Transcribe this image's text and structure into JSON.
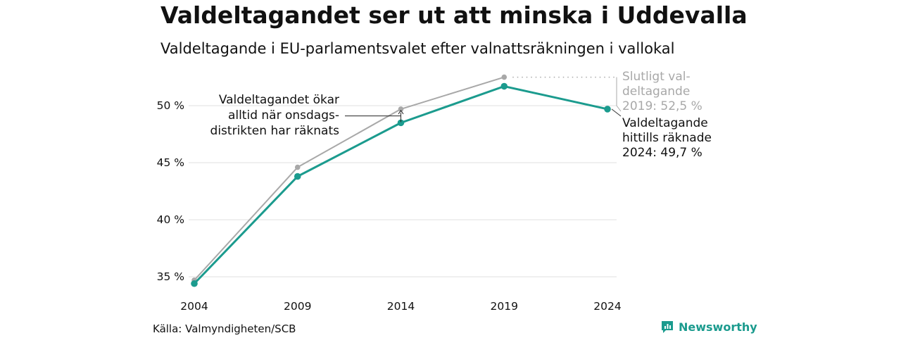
{
  "header": {
    "title": "Valdeltagandet ser ut att minska i Uddevalla",
    "subtitle": "Valdeltagande i EU-parlamentsvalet efter valnattsräkningen i vallokal"
  },
  "footer": {
    "source": "Källa: Valmyndigheten/SCB",
    "brand": "Newsworthy",
    "brand_icon": "newsworthy-logo-icon"
  },
  "colors": {
    "final_series": "#a8a8a8",
    "counted_series": "#1b9b8e",
    "grid": "#e3e3e3",
    "text": "#111111",
    "muted_text": "#a8a8a8"
  },
  "chart_data": {
    "type": "line",
    "x": [
      "2004",
      "2009",
      "2014",
      "2019",
      "2024"
    ],
    "ylim": [
      34.2,
      53.4
    ],
    "yticks": [
      {
        "value": 35,
        "label": "35 %"
      },
      {
        "value": 40,
        "label": "40 %"
      },
      {
        "value": 45,
        "label": "45 %"
      },
      {
        "value": 50,
        "label": "50 %"
      }
    ],
    "grid": true,
    "series": [
      {
        "key": "final",
        "values": [
          34.7,
          44.6,
          49.7,
          52.5,
          null
        ]
      },
      {
        "key": "counted",
        "values": [
          34.4,
          43.8,
          48.5,
          51.7,
          49.7
        ]
      }
    ],
    "annotations": {
      "increase": [
        "Valdeltagandet ökar",
        "alltid när onsdags-",
        "distrikten har räknats"
      ],
      "final": [
        "Slutligt val-",
        "deltagande",
        "2019: 52,5 %"
      ],
      "counted": [
        "Valdeltagande",
        "hittills räknade",
        "2024: 49,7 %"
      ]
    }
  }
}
